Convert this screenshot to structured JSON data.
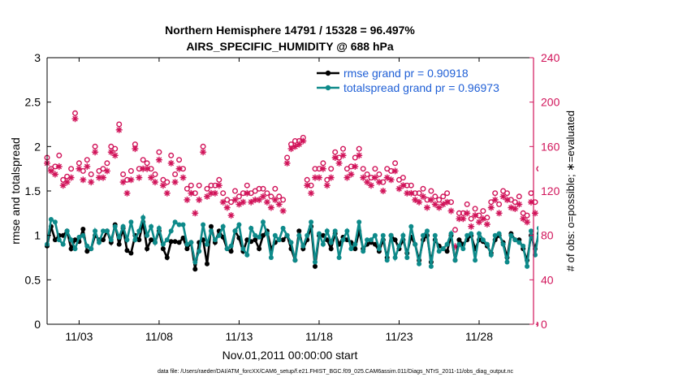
{
  "chart_data": {
    "type": "line",
    "title": "Northern Hemisphere 14791 / 15328 = 96.497%",
    "subtitle": "AIRS_SPECIFIC_HUMIDITY @ 688 hPa",
    "xlabel": "Nov.01,2011 00:00:00 start",
    "ylabel": "rmse and totalspread",
    "y2label": "# of obs: o=possible; ∗=evaluated",
    "footnote": "data file: /Users/raeder/DAI/ATM_forcXX/CAM6_setup/f.e21.FHIST_BGC.f09_025.CAM6assim.011/Diags_NTrS_2011-11/obs_diag_output.nc",
    "xlim": [
      1,
      31.4
    ],
    "ylim": [
      0,
      3
    ],
    "y2lim": [
      0,
      240
    ],
    "x_ticks": [
      3,
      8,
      13,
      18,
      23,
      28
    ],
    "x_tick_labels": [
      "11/03",
      "11/08",
      "11/13",
      "11/18",
      "11/23",
      "11/28"
    ],
    "y_ticks": [
      0,
      0.5,
      1,
      1.5,
      2,
      2.5,
      3
    ],
    "y_tick_labels": [
      "0",
      "0.5",
      "1",
      "1.5",
      "2",
      "2.5",
      "3"
    ],
    "y2_ticks": [
      0,
      40,
      80,
      120,
      160,
      200,
      240
    ],
    "y2_tick_labels": [
      "0",
      "40",
      "80",
      "120",
      "160",
      "200",
      "240"
    ],
    "grid": false,
    "legend_position": "top-right",
    "colors": {
      "rmse": "#000000",
      "spread": "#0d8a8a",
      "obs": "#d1145a",
      "legend_text": "#1f5fd6"
    },
    "series": [
      {
        "name": "rmse grand pr = 0.90918",
        "axis": "left",
        "x_start": 1.0,
        "x_step": 0.25,
        "values": [
          0.88,
          1.1,
          0.95,
          1.0,
          1.0,
          1.05,
          0.85,
          0.95,
          0.93,
          1.07,
          0.82,
          0.85,
          1.0,
          0.95,
          0.95,
          1.05,
          0.92,
          1.12,
          0.9,
          1.08,
          0.83,
          0.8,
          1.0,
          0.95,
          1.15,
          0.85,
          0.95,
          0.92,
          1.05,
          0.85,
          0.75,
          0.93,
          0.93,
          0.92,
          0.97,
          0.85,
          0.92,
          0.62,
          0.92,
          0.95,
          0.68,
          1.1,
          0.92,
          1.05,
          0.98,
          0.85,
          0.82,
          1.05,
          0.97,
          0.82,
          0.95,
          0.93,
          0.95,
          0.85,
          1.0,
          1.05,
          0.85,
          0.92,
          0.95,
          0.95,
          1.0,
          0.85,
          0.72,
          1.05,
          0.85,
          0.95,
          1.1,
          0.65,
          1.0,
          1.0,
          0.95,
          0.85,
          1.02,
          0.9,
          0.98,
          0.95,
          0.92,
          0.85,
          1.05,
          0.85,
          0.9,
          0.92,
          0.9,
          0.82,
          0.95,
          0.75,
          1.0,
          0.95,
          0.85,
          0.95,
          0.8,
          0.98,
          0.9,
          0.72,
          0.95,
          1.0,
          0.7,
          0.95,
          0.88,
          0.85,
          0.82,
          1.0,
          0.72,
          0.95,
          0.9,
          0.95,
          1.0,
          0.85,
          0.95,
          0.93,
          0.88,
          0.8,
          0.95,
          1.0,
          0.92,
          0.75,
          1.02,
          0.95,
          0.95,
          0.85,
          0.72,
          1.0,
          0.85,
          1.02
        ]
      },
      {
        "name": "totalspread grand pr = 0.96973",
        "axis": "left",
        "x_start": 1.0,
        "x_step": 0.25,
        "values": [
          0.9,
          1.18,
          1.15,
          0.95,
          0.9,
          1.05,
          0.95,
          0.85,
          0.98,
          1.0,
          0.88,
          0.85,
          1.05,
          0.92,
          1.05,
          1.05,
          0.95,
          1.1,
          0.98,
          1.1,
          0.95,
          1.15,
          0.95,
          1.05,
          1.2,
          1.0,
          1.1,
          0.92,
          1.08,
          0.9,
          0.95,
          1.05,
          1.15,
          1.12,
          1.12,
          0.9,
          0.92,
          0.7,
          0.82,
          1.12,
          0.9,
          1.05,
          0.95,
          1.0,
          1.1,
          0.85,
          0.88,
          1.05,
          1.12,
          0.85,
          0.78,
          1.08,
          1.0,
          0.98,
          1.15,
          1.02,
          0.75,
          1.0,
          0.95,
          1.08,
          1.0,
          0.92,
          0.72,
          1.0,
          0.88,
          1.0,
          1.15,
          0.7,
          1.02,
          0.9,
          1.05,
          0.92,
          1.05,
          0.75,
          0.95,
          1.05,
          0.85,
          0.9,
          1.15,
          0.82,
          0.95,
          0.95,
          1.0,
          0.85,
          1.0,
          0.72,
          1.0,
          0.75,
          0.88,
          1.0,
          0.75,
          1.1,
          0.9,
          0.68,
          1.0,
          1.05,
          0.65,
          1.0,
          0.82,
          0.85,
          0.9,
          1.02,
          0.72,
          0.9,
          0.85,
          1.0,
          1.02,
          0.72,
          1.02,
          0.95,
          0.9,
          0.78,
          1.0,
          1.02,
          0.9,
          0.7,
          1.0,
          0.95,
          0.92,
          0.88,
          0.65,
          1.05,
          0.78,
          1.08
        ]
      },
      {
        "name": "possible",
        "axis": "right",
        "marker": "o",
        "x_start": 1.0,
        "x_step": 0.25,
        "values": [
          150,
          140,
          142,
          152,
          130,
          133,
          140,
          190,
          145,
          138,
          148,
          135,
          160,
          138,
          140,
          145,
          160,
          158,
          180,
          135,
          130,
          138,
          162,
          140,
          148,
          145,
          140,
          135,
          155,
          130,
          128,
          152,
          135,
          148,
          140,
          122,
          125,
          118,
          125,
          160,
          122,
          125,
          125,
          130,
          118,
          112,
          110,
          120,
          115,
          118,
          125,
          118,
          120,
          122,
          122,
          118,
          115,
          122,
          115,
          112,
          150,
          162,
          165,
          165,
          168,
          130,
          125,
          140,
          140,
          145,
          130,
          140,
          155,
          150,
          158,
          140,
          142,
          150,
          158,
          140,
          135,
          132,
          140,
          135,
          128,
          140,
          138,
          145,
          130,
          132,
          125,
          125,
          118,
          118,
          122,
          112,
          120,
          115,
          112,
          115,
          118,
          110,
          85,
          100,
          100,
          108,
          95,
          104,
          98,
          102,
          96,
          110,
          118,
          108,
          120,
          118,
          112,
          110,
          115,
          100,
          98,
          118,
          110,
          140
        ]
      },
      {
        "name": "evaluated",
        "axis": "right",
        "marker": "*",
        "x_start": 1.0,
        "x_step": 0.25,
        "values": [
          145,
          138,
          135,
          142,
          125,
          128,
          132,
          185,
          140,
          130,
          142,
          128,
          155,
          132,
          132,
          138,
          155,
          152,
          175,
          128,
          118,
          130,
          158,
          132,
          140,
          140,
          132,
          128,
          148,
          125,
          118,
          145,
          128,
          140,
          132,
          112,
          118,
          100,
          112,
          155,
          115,
          118,
          118,
          125,
          110,
          105,
          98,
          112,
          108,
          110,
          118,
          110,
          112,
          112,
          115,
          110,
          105,
          112,
          108,
          102,
          145,
          158,
          160,
          162,
          165,
          125,
          118,
          132,
          132,
          140,
          125,
          132,
          150,
          145,
          152,
          132,
          135,
          142,
          152,
          132,
          128,
          125,
          132,
          128,
          120,
          132,
          130,
          138,
          122,
          125,
          118,
          118,
          112,
          110,
          115,
          105,
          112,
          108,
          105,
          108,
          110,
          102,
          70,
          95,
          95,
          100,
          88,
          98,
          92,
          95,
          90,
          105,
          112,
          100,
          115,
          112,
          105,
          104,
          108,
          95,
          92,
          110,
          100,
          0
        ]
      }
    ]
  }
}
